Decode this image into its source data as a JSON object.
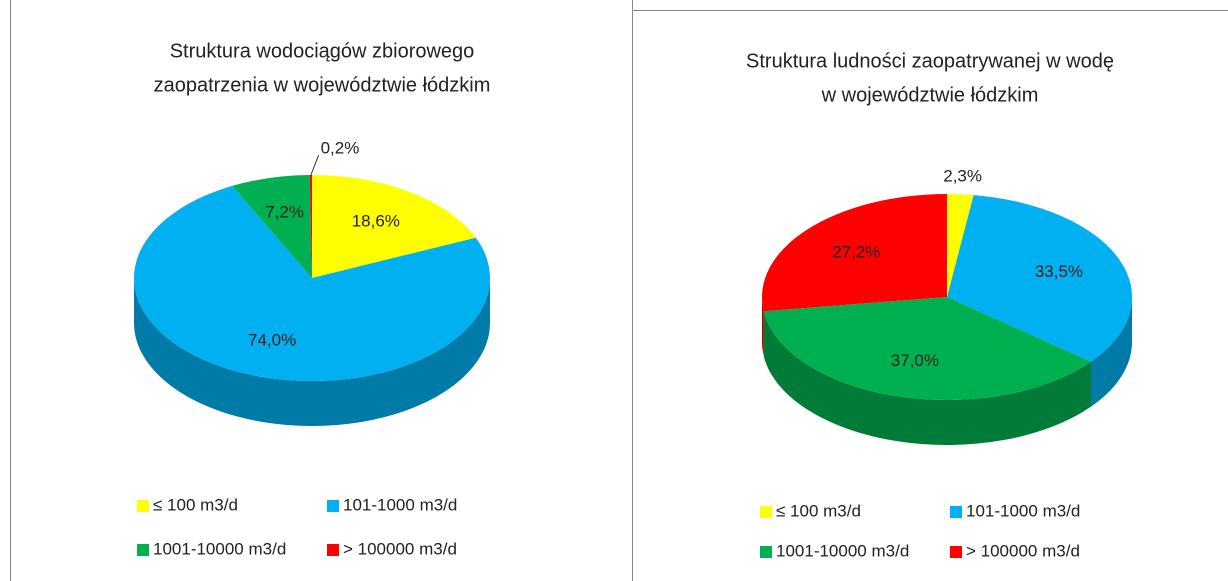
{
  "chart_data": [
    {
      "type": "pie",
      "title": [
        "Struktura wodociągów zbiorowego",
        "zaopatrzenia w województwie łódzkim"
      ],
      "categories": [
        "≤ 100 m3/d",
        "101-1000 m3/d",
        "1001-10000 m3/d",
        "> 100000 m3/d"
      ],
      "values": [
        18.6,
        74.0,
        7.2,
        0.2
      ],
      "value_labels": [
        "18,6%",
        "74,0%",
        "7,2%",
        "0,2%"
      ],
      "colors": [
        "#ffff00",
        "#00b0f0",
        "#00b050",
        "#ff0000"
      ]
    },
    {
      "type": "pie",
      "title": [
        "Struktura ludności zaopatrywanej w wodę",
        "w województwie łódzkim"
      ],
      "categories": [
        "≤ 100 m3/d",
        "101-1000 m3/d",
        "1001-10000 m3/d",
        "> 100000 m3/d"
      ],
      "values": [
        2.3,
        33.5,
        37.0,
        27.2
      ],
      "value_labels": [
        "2,3%",
        "33,5%",
        "37,0%",
        "27,2%"
      ],
      "colors": [
        "#ffff00",
        "#00b0f0",
        "#00b050",
        "#ff0000"
      ]
    }
  ]
}
